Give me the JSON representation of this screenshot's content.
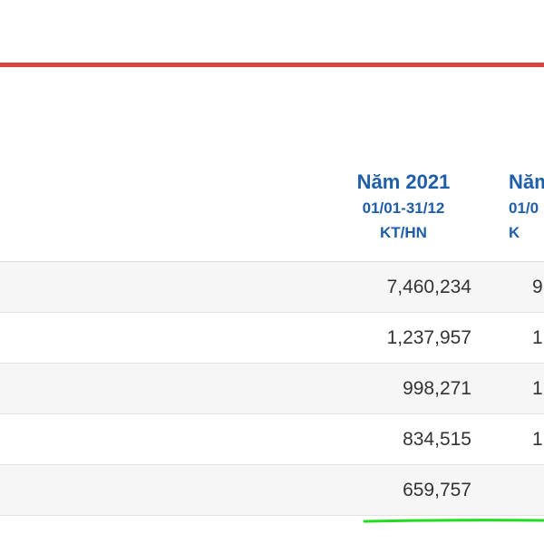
{
  "columns": [
    {
      "year": "Năm 2021",
      "period": "01/01-31/12",
      "type": "KT/HN"
    },
    {
      "year": "Năm",
      "period": "01/0",
      "type": "K"
    }
  ],
  "rows": [
    {
      "col1": "7,460,234",
      "col2": "9"
    },
    {
      "col1": "1,237,957",
      "col2": "1"
    },
    {
      "col1": "998,271",
      "col2": "1"
    },
    {
      "col1": "834,515",
      "col2": "1"
    },
    {
      "col1": "659,757",
      "col2": ""
    }
  ],
  "colors": {
    "header_text": "#1f5ea8",
    "divider": "#d9453b",
    "highlight_mark": "#22dd22"
  }
}
